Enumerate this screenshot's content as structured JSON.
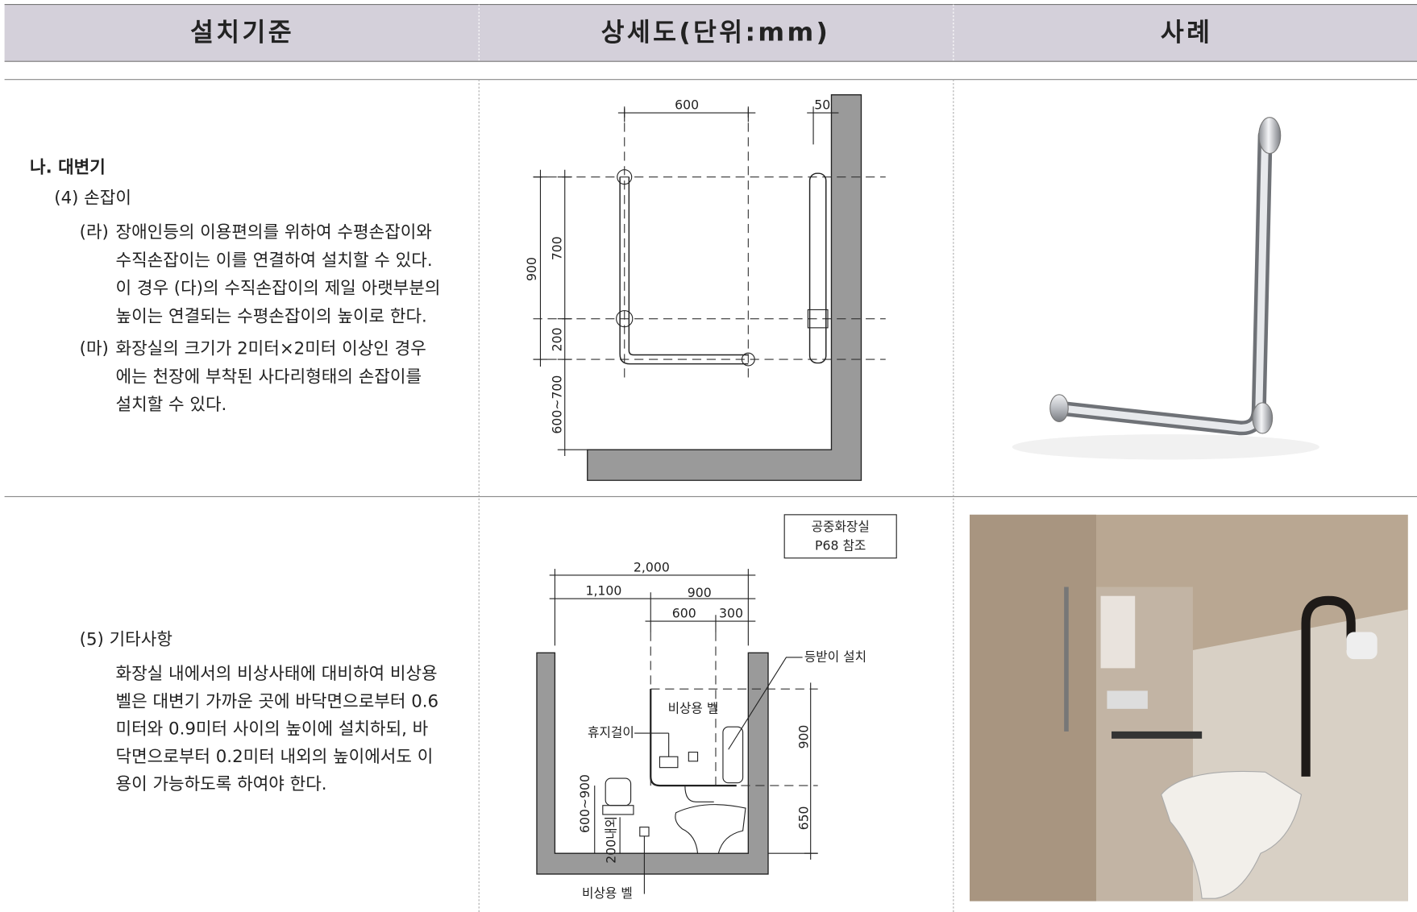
{
  "header": {
    "columns": [
      "설치기준",
      "상세도(단위:mm)",
      "사례"
    ]
  },
  "rows": [
    {
      "section": "나. 대변기",
      "subsection": "(4) 손잡이",
      "items": [
        {
          "marker": "(라)",
          "lines": [
            "장애인등의 이용편의를 위하여 수평손잡이와",
            "수직손잡이는 이를 연결하여 설치할 수 있다.",
            "이 경우 (다)의 수직손잡이의 제일 아랫부분의",
            "높이는 연결되는 수평손잡이의 높이로 한다."
          ]
        },
        {
          "marker": "(마)",
          "lines": [
            "화장실의 크기가 2미터×2미터 이상인 경우",
            "에는 천장에 부착된 사다리형태의 손잡이를",
            "설치할 수 있다."
          ]
        }
      ],
      "diagram": {
        "labels": [
          "600",
          "50",
          "900",
          "700",
          "200",
          "600~700"
        ]
      }
    },
    {
      "subsection": "(5) 기타사항",
      "paragraph": [
        "화장실 내에서의 비상사태에 대비하여 비상용",
        "벨은 대변기 가까운 곳에 바닥면으로부터 0.6",
        "미터와 0.9미터 사이의 높이에 설치하되, 바",
        "닥면으로부터 0.2미터 내외의 높이에서도 이",
        "용이 가능하도록 하여야 한다."
      ],
      "diagram": {
        "reference": [
          "공중화장실",
          "P68 참조"
        ],
        "labels": [
          "2,000",
          "1,100",
          "900",
          "600",
          "300",
          "등받이 설치",
          "비상용 벨",
          "휴지걸이",
          "900",
          "600~900",
          "650",
          "200내외",
          "비상용 벨"
        ]
      }
    }
  ]
}
